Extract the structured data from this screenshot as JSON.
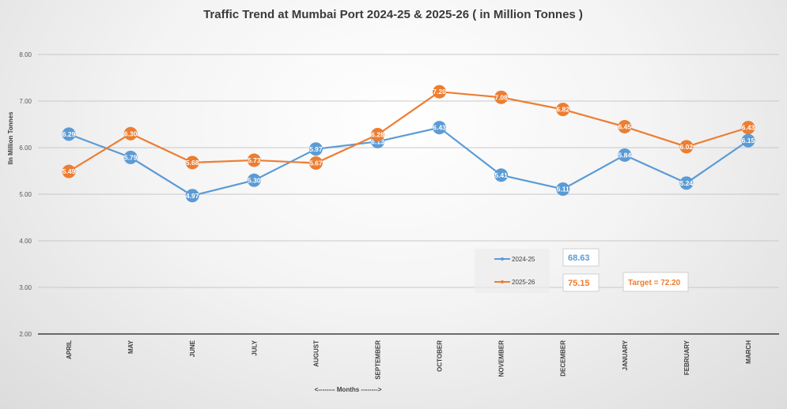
{
  "chart_data": {
    "type": "line",
    "title": "Traffic Trend at Mumbai Port  2024-25  & 2025-26  ( in Million Tonnes )",
    "xlabel": "<-------- Months -------->",
    "ylabel": "IIn Million Tonnes",
    "ylim": [
      2.0,
      8.0
    ],
    "yticks": [
      "2.00",
      "3.00",
      "4.00",
      "5.00",
      "6.00",
      "7.00",
      "8.00"
    ],
    "ytick_values": [
      2,
      3,
      4,
      5,
      6,
      7,
      8
    ],
    "grid": true,
    "categories": [
      "APRIL",
      "MAY",
      "JUNE",
      "JULY",
      "AUGUST",
      "SEPTEMBER",
      "OCTOBER",
      "NOVEMBER",
      "DECEMBER",
      "JANUARY",
      "FEBRUARY",
      "MARCH"
    ],
    "series": [
      {
        "name": "2024-25",
        "color": "#5b9bd5",
        "values": [
          6.29,
          5.79,
          4.97,
          5.3,
          5.97,
          6.13,
          6.43,
          5.41,
          5.11,
          5.84,
          5.24,
          6.15
        ],
        "labels": [
          "6.29",
          "5.79",
          "4.97",
          "5.30",
          "5.97",
          "6.13",
          "6.43",
          "5.41",
          "5.11",
          "5.84",
          "5.24",
          "6.15"
        ]
      },
      {
        "name": "2025-26",
        "color": "#ed7d31",
        "values": [
          5.49,
          6.3,
          5.68,
          5.73,
          5.67,
          6.28,
          7.2,
          7.08,
          6.82,
          6.45,
          6.02,
          6.43
        ],
        "labels": [
          "5.49",
          "6.30",
          "5.68",
          "5.73",
          "5.67",
          "6.28",
          "7.20",
          "7.08",
          "6.82",
          "6.45",
          "6.02",
          "6.43"
        ]
      }
    ],
    "legend": {
      "position": "bottom-center-right",
      "entries": [
        "2024-25",
        "2025-26"
      ]
    },
    "annotations": {
      "total_2024_25": "68.63",
      "total_2025_26": "75.15",
      "target": "Target = 72.20"
    }
  }
}
